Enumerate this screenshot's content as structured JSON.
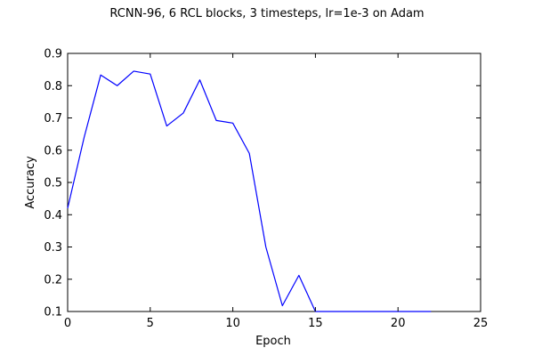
{
  "chart_data": {
    "type": "line",
    "title": "RCNN-96, 6 RCL blocks, 3 timesteps, lr=1e-3 on Adam",
    "xlabel": "Epoch",
    "ylabel": "Accuracy",
    "xlim": [
      0,
      25
    ],
    "ylim": [
      0.1,
      0.9
    ],
    "xticks": [
      0,
      5,
      10,
      15,
      20,
      25
    ],
    "xtick_labels": [
      "0",
      "5",
      "10",
      "15",
      "20",
      "25"
    ],
    "yticks": [
      0.1,
      0.2,
      0.3,
      0.4,
      0.5,
      0.6,
      0.7,
      0.8,
      0.9
    ],
    "ytick_labels": [
      "0.1",
      "0.2",
      "0.3",
      "0.4",
      "0.5",
      "0.6",
      "0.7",
      "0.8",
      "0.9"
    ],
    "grid": false,
    "legend": "none",
    "colors": {
      "line": "#0000ff",
      "axes": "#000000"
    },
    "series": [
      {
        "x": [
          0,
          1,
          2,
          3,
          4,
          5,
          6,
          7,
          8,
          9,
          10,
          11,
          12,
          13,
          14,
          15,
          16,
          17,
          18,
          19,
          20,
          21,
          22
        ],
        "values": [
          0.42,
          0.64,
          0.833,
          0.8,
          0.845,
          0.836,
          0.675,
          0.715,
          0.818,
          0.692,
          0.684,
          0.59,
          0.3,
          0.118,
          0.212,
          0.1,
          0.1,
          0.1,
          0.1,
          0.1,
          0.1,
          0.1,
          0.1
        ]
      }
    ]
  }
}
